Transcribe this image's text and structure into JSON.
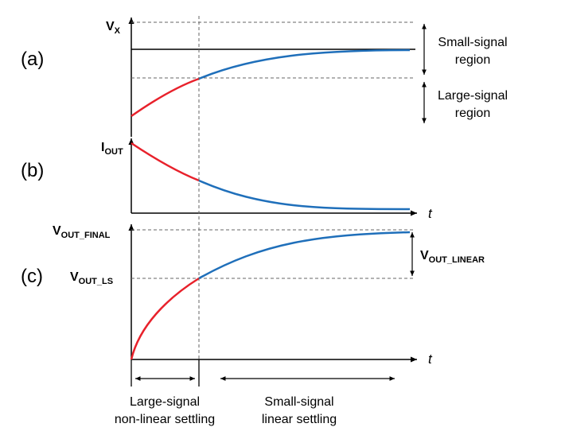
{
  "panels": {
    "a": {
      "tag": "(a)",
      "y_label": {
        "main": "V",
        "sub": "X"
      },
      "small_signal": "Small-signal region",
      "small_signal_lines": [
        "Small-signal",
        "region"
      ],
      "large_signal_lines": [
        "Large-signal",
        "region"
      ]
    },
    "b": {
      "tag": "(b)",
      "y_label": {
        "main": "I",
        "sub": "OUT"
      },
      "x_label": "t"
    },
    "c": {
      "tag": "(c)",
      "y_final": {
        "main": "V",
        "sub": "OUT_FINAL"
      },
      "y_ls": {
        "main": "V",
        "sub": "OUT_LS"
      },
      "linear_span": {
        "main": "V",
        "sub": "OUT_LINEAR"
      },
      "x_label": "t"
    }
  },
  "bottom": {
    "left_lines": [
      "Large-signal",
      "non-linear settling"
    ],
    "right_lines": [
      "Small-signal",
      "linear settling"
    ]
  },
  "colors": {
    "large_signal": "#e8212b",
    "small_signal": "#1f6fba",
    "axis": "#000000",
    "guide": "#555555"
  }
}
